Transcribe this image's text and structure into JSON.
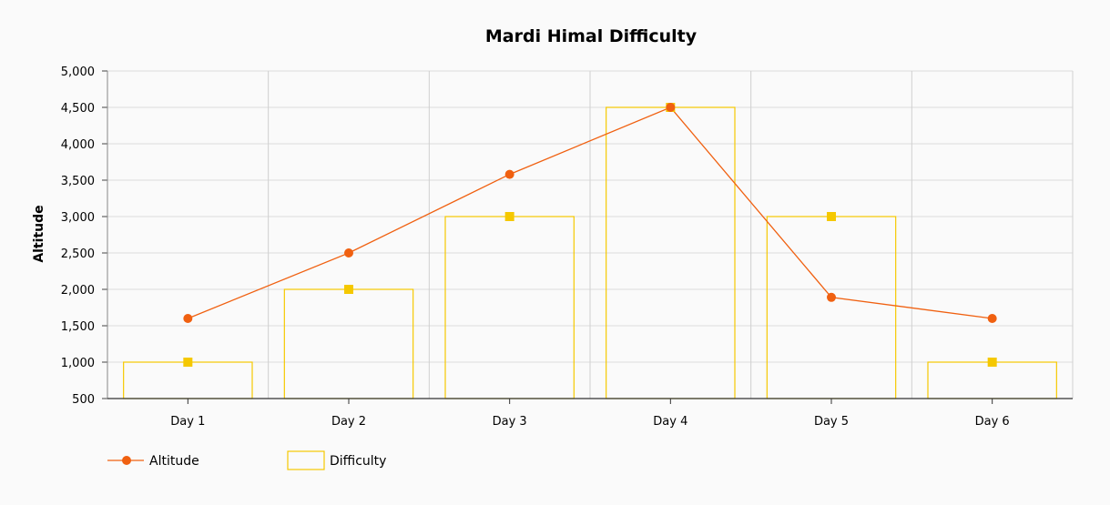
{
  "chart_data": {
    "type": "bar",
    "title": "Mardi Himal Difficulty",
    "ylabel": "Altitude",
    "xlabel": "",
    "categories": [
      "Day 1",
      "Day 2",
      "Day 3",
      "Day 4",
      "Day 5",
      "Day 6"
    ],
    "ylim": [
      500,
      5000
    ],
    "yticks": [
      "500",
      "1,000",
      "1,500",
      "2,000",
      "2,500",
      "3,000",
      "3,500",
      "4,000",
      "4,500",
      "5,000"
    ],
    "grid": true,
    "legend_position": "bottom-left",
    "series": [
      {
        "name": "Altitude",
        "type": "line",
        "color": "#f06010",
        "marker": "circle",
        "values": [
          1600,
          2500,
          3580,
          4500,
          1890,
          1600
        ]
      },
      {
        "name": "Difficulty",
        "type": "bar",
        "color": "#f5c800",
        "marker": "square",
        "values": [
          1000,
          2000,
          3000,
          4500,
          3000,
          1000
        ]
      }
    ]
  }
}
